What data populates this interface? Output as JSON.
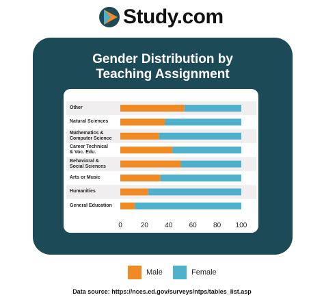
{
  "logo": "Study.com",
  "chart_data": {
    "type": "bar",
    "orientation": "horizontal",
    "stacked": true,
    "title": "Gender Distribution by Teaching Assignment",
    "categories": [
      "Other",
      "Natural Sciences",
      "Mathematics &\nComputer Science",
      "Career Technical\n& Voc. Edu.",
      "Behavioral &\nSocial Sciences",
      "Arts or Music",
      "Humanities",
      "General Education"
    ],
    "series": [
      {
        "name": "Male",
        "color": "#f08a24",
        "values": [
          53,
          37,
          32,
          43,
          50,
          33,
          23,
          12
        ]
      },
      {
        "name": "Female",
        "color": "#4fb0cc",
        "values": [
          47,
          63,
          68,
          57,
          50,
          67,
          77,
          88
        ]
      }
    ],
    "xlim": [
      0,
      100
    ],
    "xticks": [
      0,
      20,
      40,
      60,
      80,
      100
    ]
  },
  "source": {
    "label": "Data source:",
    "url": "https://nces.ed.gov/surveys/ntps/tables_list.asp"
  }
}
